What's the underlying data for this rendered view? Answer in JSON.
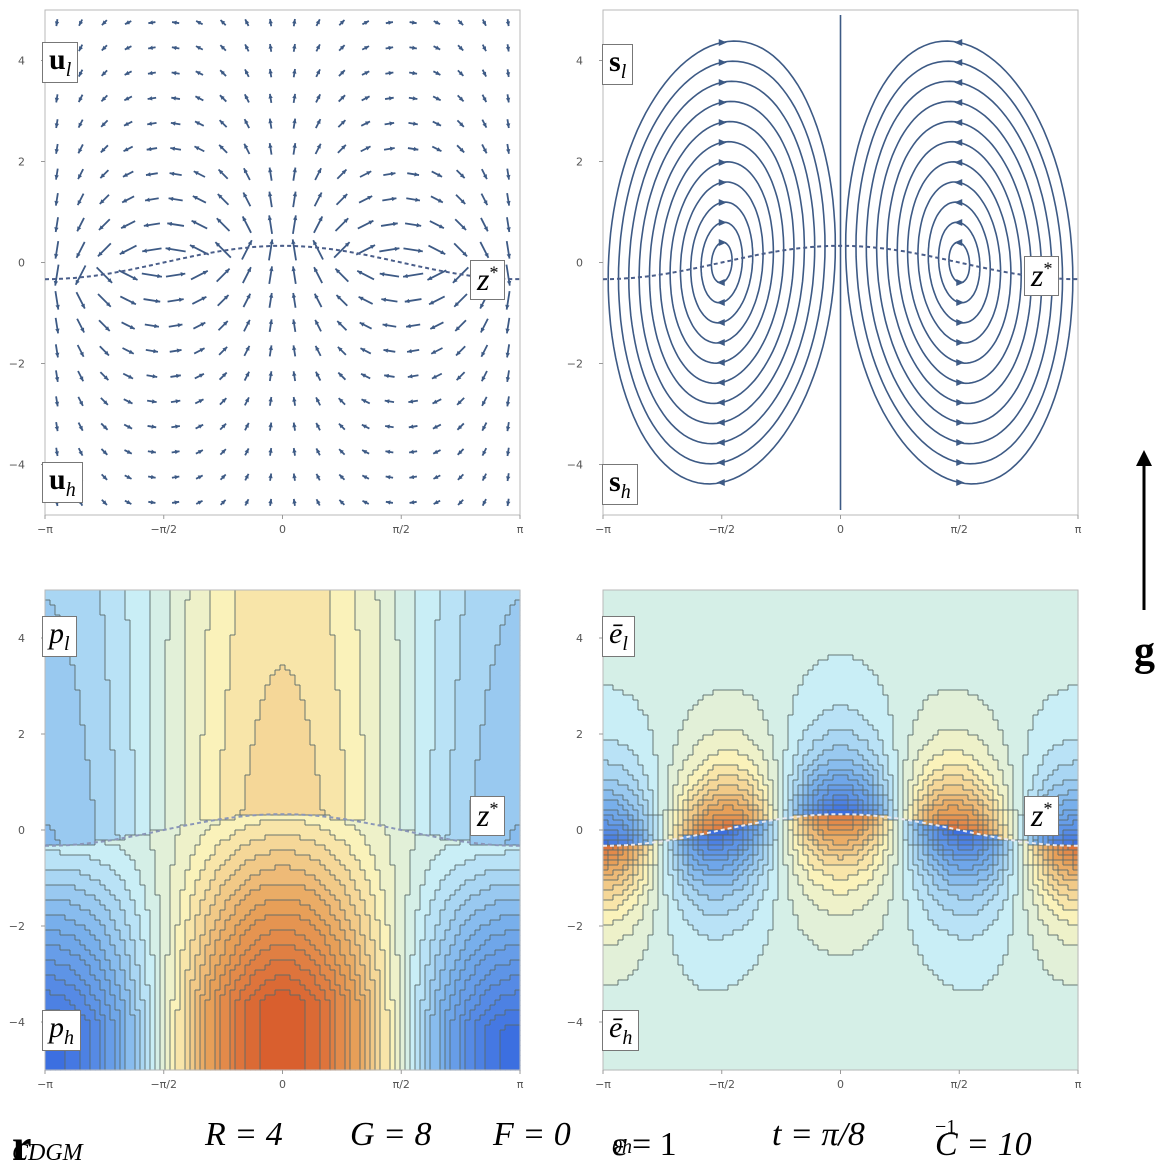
{
  "panels": {
    "u": {
      "label_top": "u",
      "label_top_sub": "l",
      "label_bottom": "u",
      "label_bottom_sub": "h",
      "interface_label": "z",
      "interface_sup": "*"
    },
    "s": {
      "label_top": "s",
      "label_top_sub": "l",
      "label_bottom": "s",
      "label_bottom_sub": "h",
      "interface_label": "z",
      "interface_sup": "*"
    },
    "p": {
      "label_top": "p",
      "label_top_sub": "l",
      "label_bottom": "p",
      "label_bottom_sub": "h",
      "interface_label": "z",
      "interface_sup": "*"
    },
    "e": {
      "label_top": "ē",
      "label_top_sub": "l",
      "label_bottom": "ē",
      "label_bottom_sub": "h",
      "interface_label": "z",
      "interface_sup": "*"
    }
  },
  "axes": {
    "x_ticks": [
      "−π",
      "−π/2",
      "0",
      "π/2",
      "π"
    ],
    "y_ticks": [
      "4",
      "2",
      "0",
      "−2",
      "−4"
    ],
    "x_range": [
      -3.14159,
      3.14159
    ],
    "y_range": [
      -5,
      5
    ]
  },
  "gravity": {
    "label": "g"
  },
  "footer": {
    "r": "r",
    "r_sub": "CDGM",
    "R": "R = 4",
    "G": "G = 8",
    "F": "F = 0",
    "eps": "ε",
    "eps_sub": "0h",
    "eps_val": " = 1",
    "t": "t = π/8",
    "C": "C = 10",
    "C_sup": "−1"
  },
  "colors": {
    "arrow": "#3d5a85",
    "contour_line": "#5a6a6a",
    "interface": "#4a5e8a",
    "red": "#d95f2e",
    "orange": "#e8a25a",
    "cream": "#fbf2b8",
    "light_cyan": "#c8eef8",
    "blue": "#3c6fe0"
  }
}
